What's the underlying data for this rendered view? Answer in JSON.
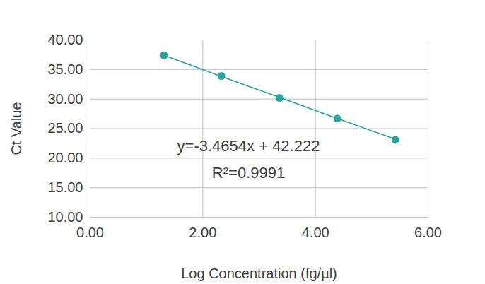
{
  "chart_data": {
    "type": "scatter",
    "x_label": "Log Concentration (fg/µl)",
    "y_label": "Ct Value",
    "x": [
      1.31,
      2.33,
      3.36,
      4.39,
      5.42
    ],
    "series": [
      {
        "type": "scatter",
        "color": "#2ba39b",
        "marker": "circle",
        "values": [
          37.4,
          33.9,
          30.2,
          26.7,
          23.1
        ]
      },
      {
        "type": "line",
        "color": "#2ba39b",
        "line_style": "solid",
        "values": [
          37.4,
          33.8,
          30.3,
          26.7,
          23.2
        ]
      }
    ],
    "annotations": [
      "y=-3.4654x + 42.222",
      "R²=0.9991"
    ],
    "xlim": [
      0,
      6
    ],
    "xticks": [
      {
        "value": 0,
        "label": "0.00"
      },
      {
        "value": 2,
        "label": "2.00"
      },
      {
        "value": 4,
        "label": "4.00"
      },
      {
        "value": 6,
        "label": "6.00"
      }
    ],
    "ylim": [
      10,
      40
    ],
    "yticks": [
      {
        "value": 10,
        "label": "10.00"
      },
      {
        "value": 15,
        "label": "15.00"
      },
      {
        "value": 20,
        "label": "20.00"
      },
      {
        "value": 25,
        "label": "25.00"
      },
      {
        "value": 30,
        "label": "30.00"
      },
      {
        "value": 35,
        "label": "35.00"
      },
      {
        "value": 40,
        "label": "40.00"
      }
    ],
    "grid": true
  }
}
